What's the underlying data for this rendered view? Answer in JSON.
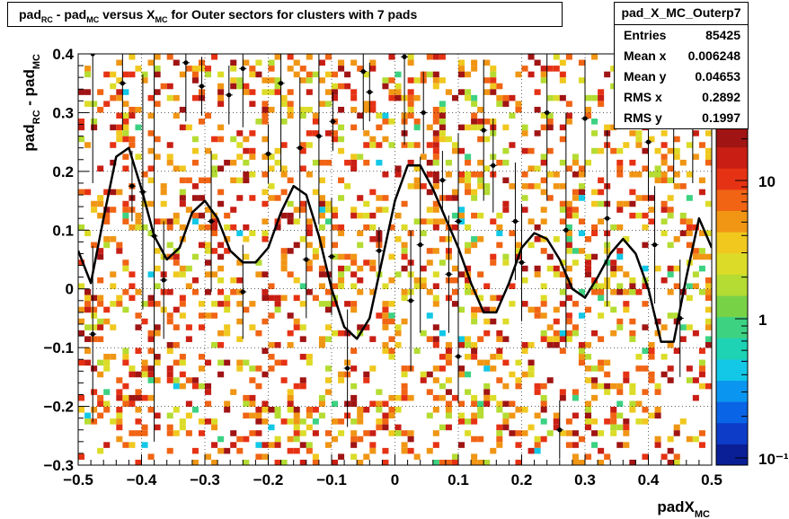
{
  "title": {
    "parts": [
      {
        "t": "pad"
      },
      {
        "s": "RC"
      },
      {
        "t": " - pad"
      },
      {
        "s": "MC"
      },
      {
        "t": " versus X"
      },
      {
        "s": "MC"
      },
      {
        "t": " for Outer sectors for clusters with 7 pads"
      }
    ]
  },
  "stats": {
    "name": "pad_X_MC_Outerp7",
    "rows": [
      {
        "label": "Entries",
        "value": "85425"
      },
      {
        "label": "Mean x",
        "value": "0.006248"
      },
      {
        "label": "Mean y",
        "value": "0.04653"
      },
      {
        "label": "RMS x",
        "value": "0.2892"
      },
      {
        "label": "RMS y",
        "value": "0.1997"
      }
    ]
  },
  "chart_data": {
    "type": "heatmap",
    "xlabel": "padX",
    "xlabel_sub": "MC",
    "ylabel": "pad",
    "ylabel_sub1": "RC",
    "ylabel_mid": " - pad",
    "ylabel_sub2": "MC",
    "xlim": [
      -0.5,
      0.5
    ],
    "ylim": [
      -0.3,
      0.4
    ],
    "xticks": [
      "−0.5",
      "−0.4",
      "−0.3",
      "−0.2",
      "−0.1",
      "0",
      "0.1",
      "0.2",
      "0.3",
      "0.4",
      "0.5"
    ],
    "yticks": [
      "−0.3",
      "−0.2",
      "−0.1",
      "0",
      "0.1",
      "0.2",
      "0.3",
      "0.4"
    ],
    "grid": true,
    "z_scale": "log",
    "zticks": [
      "10",
      "1",
      "10⁻¹"
    ],
    "z_palette": [
      "#0a1e96",
      "#0c3cc8",
      "#0a64e6",
      "#0a96f0",
      "#12c8e6",
      "#1ed2b4",
      "#3cd282",
      "#78d246",
      "#b4dc32",
      "#dcdc28",
      "#f0c81e",
      "#f09614",
      "#f06414",
      "#e63214",
      "#c81e14",
      "#a01414"
    ],
    "fit_curve": [
      [
        -0.5,
        0.065
      ],
      [
        -0.48,
        0.01
      ],
      [
        -0.46,
        0.12
      ],
      [
        -0.44,
        0.225
      ],
      [
        -0.42,
        0.24
      ],
      [
        -0.4,
        0.17
      ],
      [
        -0.38,
        0.09
      ],
      [
        -0.36,
        0.05
      ],
      [
        -0.34,
        0.07
      ],
      [
        -0.32,
        0.13
      ],
      [
        -0.3,
        0.15
      ],
      [
        -0.28,
        0.12
      ],
      [
        -0.26,
        0.065
      ],
      [
        -0.24,
        0.045
      ],
      [
        -0.22,
        0.045
      ],
      [
        -0.2,
        0.07
      ],
      [
        -0.18,
        0.13
      ],
      [
        -0.16,
        0.175
      ],
      [
        -0.14,
        0.16
      ],
      [
        -0.12,
        0.09
      ],
      [
        -0.1,
        0.0
      ],
      [
        -0.08,
        -0.065
      ],
      [
        -0.06,
        -0.085
      ],
      [
        -0.04,
        -0.05
      ],
      [
        -0.02,
        0.05
      ],
      [
        0.0,
        0.15
      ],
      [
        0.02,
        0.21
      ],
      [
        0.04,
        0.21
      ],
      [
        0.06,
        0.17
      ],
      [
        0.08,
        0.12
      ],
      [
        0.1,
        0.07
      ],
      [
        0.12,
        0.01
      ],
      [
        0.14,
        -0.04
      ],
      [
        0.16,
        -0.04
      ],
      [
        0.18,
        0.01
      ],
      [
        0.2,
        0.07
      ],
      [
        0.22,
        0.095
      ],
      [
        0.24,
        0.085
      ],
      [
        0.26,
        0.05
      ],
      [
        0.28,
        0.0
      ],
      [
        0.3,
        -0.015
      ],
      [
        0.32,
        0.02
      ],
      [
        0.34,
        0.06
      ],
      [
        0.36,
        0.085
      ],
      [
        0.38,
        0.06
      ],
      [
        0.4,
        0.0
      ],
      [
        0.42,
        -0.09
      ],
      [
        0.44,
        -0.09
      ],
      [
        0.46,
        0.02
      ],
      [
        0.48,
        0.12
      ],
      [
        0.5,
        0.07
      ]
    ],
    "points": [
      {
        "x": -0.477,
        "y": 0.4,
        "e": 0.22
      },
      {
        "x": -0.477,
        "y": -0.077,
        "e": 0.15
      },
      {
        "x": -0.43,
        "y": 0.35,
        "e": 0.08
      },
      {
        "x": -0.415,
        "y": 0.175,
        "e": 0.06
      },
      {
        "x": -0.398,
        "y": 0.165,
        "e": 0.2
      },
      {
        "x": -0.38,
        "y": 0.09,
        "e": 0.35
      },
      {
        "x": -0.365,
        "y": 0.015,
        "e": 0.1
      },
      {
        "x": -0.33,
        "y": 0.385,
        "e": 0.1
      },
      {
        "x": -0.305,
        "y": 0.345,
        "e": 0.05
      },
      {
        "x": -0.29,
        "y": 0.115,
        "e": 0.12
      },
      {
        "x": -0.262,
        "y": 0.33,
        "e": 0.05
      },
      {
        "x": -0.24,
        "y": 0.375,
        "e": 0.1
      },
      {
        "x": -0.24,
        "y": -0.005,
        "e": 0.08
      },
      {
        "x": -0.2,
        "y": 0.23,
        "e": 0.05
      },
      {
        "x": -0.18,
        "y": 0.35,
        "e": 0.15
      },
      {
        "x": -0.15,
        "y": 0.24,
        "e": 0.12
      },
      {
        "x": -0.14,
        "y": 0.05,
        "e": 0.1
      },
      {
        "x": -0.12,
        "y": 0.26,
        "e": 0.15
      },
      {
        "x": -0.1,
        "y": 0.055,
        "e": 0.1
      },
      {
        "x": -0.098,
        "y": 0.285,
        "e": 0.05
      },
      {
        "x": -0.075,
        "y": -0.135,
        "e": 0.1
      },
      {
        "x": -0.05,
        "y": 0.37,
        "e": 0.1
      },
      {
        "x": -0.04,
        "y": 0.335,
        "e": 0.05
      },
      {
        "x": -0.025,
        "y": 0.065,
        "e": 0.04
      },
      {
        "x": 0.015,
        "y": 0.395,
        "e": 0.15
      },
      {
        "x": 0.025,
        "y": -0.02,
        "e": 0.12
      },
      {
        "x": 0.045,
        "y": 0.3,
        "e": 0.07
      },
      {
        "x": 0.04,
        "y": 0.075,
        "e": 0.15
      },
      {
        "x": 0.075,
        "y": 0.185,
        "e": 0.05
      },
      {
        "x": 0.085,
        "y": 0.025,
        "e": 0.1
      },
      {
        "x": 0.1,
        "y": 0.115,
        "e": 0.15
      },
      {
        "x": 0.1,
        "y": -0.115,
        "e": 0.08
      },
      {
        "x": 0.14,
        "y": 0.27,
        "e": 0.12
      },
      {
        "x": 0.155,
        "y": 0.21,
        "e": 0.08
      },
      {
        "x": 0.19,
        "y": 0.115,
        "e": 0.1
      },
      {
        "x": 0.2,
        "y": 0.045,
        "e": 0.1
      },
      {
        "x": 0.24,
        "y": 0.3,
        "e": 0.15
      },
      {
        "x": 0.27,
        "y": 0.1,
        "e": 0.2
      },
      {
        "x": 0.26,
        "y": -0.24,
        "e": 0.05
      },
      {
        "x": 0.3,
        "y": 0.29,
        "e": 0.1
      },
      {
        "x": 0.335,
        "y": 0.12,
        "e": 0.15
      },
      {
        "x": 0.4,
        "y": 0.25,
        "e": 0.1
      },
      {
        "x": 0.41,
        "y": 0.075,
        "e": 0.1
      },
      {
        "x": 0.44,
        "y": 0.3,
        "e": 0.12
      },
      {
        "x": 0.45,
        "y": -0.05,
        "e": 0.1
      },
      {
        "x": 0.47,
        "y": 0.28,
        "e": 0.1
      }
    ]
  }
}
